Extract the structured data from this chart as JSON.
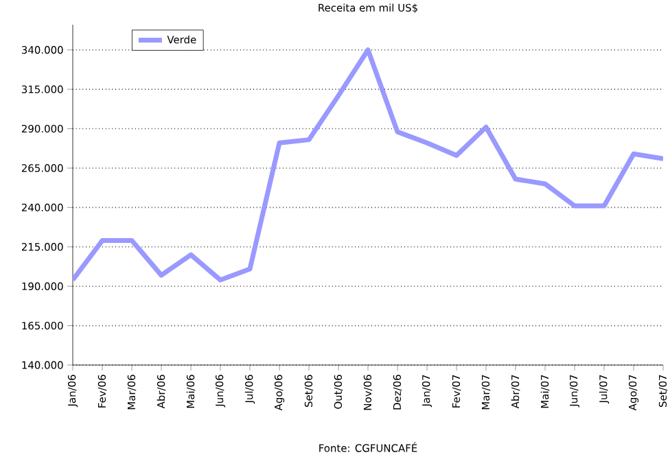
{
  "chart_data": {
    "type": "line",
    "title": "Receita em mil US$",
    "categories": [
      "Jan/06",
      "Fev/06",
      "Mar/06",
      "Abr/06",
      "Mai/06",
      "Jun/06",
      "Jul/06",
      "Ago/06",
      "Set/06",
      "Out/06",
      "Nov/06",
      "Dez/06",
      "Jan/07",
      "Fev/07",
      "Mar/07",
      "Abr/07",
      "Mai/07",
      "Jun/07",
      "Jul/07",
      "Ago/07",
      "Set/07"
    ],
    "series": [
      {
        "name": "Verde",
        "color": "#9999ff",
        "values": [
          194000,
          219000,
          219000,
          197000,
          210000,
          194000,
          201000,
          281000,
          283000,
          311000,
          340000,
          288000,
          281000,
          273000,
          291000,
          258000,
          255000,
          241000,
          241000,
          274000,
          271000
        ]
      }
    ],
    "ylim": [
      140000,
      356000
    ],
    "yticks": [
      {
        "value": 140000,
        "label": "140.000"
      },
      {
        "value": 165000,
        "label": "165.000"
      },
      {
        "value": 190000,
        "label": "190.000"
      },
      {
        "value": 215000,
        "label": "215.000"
      },
      {
        "value": 240000,
        "label": "240.000"
      },
      {
        "value": 265000,
        "label": "265.000"
      },
      {
        "value": 290000,
        "label": "290.000"
      },
      {
        "value": 315000,
        "label": "315.000"
      },
      {
        "value": 340000,
        "label": "340.000"
      }
    ],
    "grid": "y",
    "legend": "top left",
    "marker": "none",
    "line_style": "solid",
    "annotations": [
      "Fonte: CGFUNCAFÉ"
    ]
  }
}
